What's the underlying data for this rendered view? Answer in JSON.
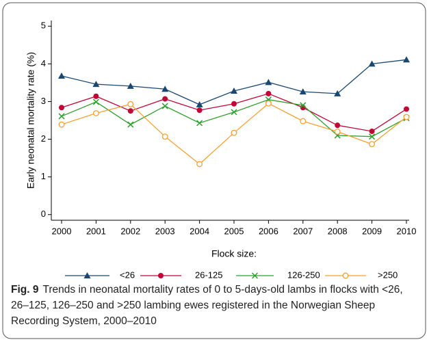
{
  "chart_data": {
    "type": "line",
    "y_label": "Early neonatal mortality rate (%)",
    "x_label": "Flock size:",
    "categories": [
      "2000",
      "2001",
      "2002",
      "2003",
      "2004",
      "2005",
      "2006",
      "2007",
      "2008",
      "2009",
      "2010"
    ],
    "ylim": [
      -0.15,
      5.15
    ],
    "yticks": [
      0,
      1,
      2,
      3,
      4,
      5
    ],
    "series": [
      {
        "name": "<26",
        "color": "#1a476f",
        "marker": "triangle",
        "values": [
          3.68,
          3.46,
          3.41,
          3.33,
          2.92,
          3.28,
          3.51,
          3.26,
          3.21,
          4.0,
          4.11
        ]
      },
      {
        "name": "26-125",
        "color": "#c10534",
        "marker": "circle",
        "values": [
          2.84,
          3.14,
          2.75,
          3.07,
          2.77,
          2.94,
          3.21,
          2.84,
          2.37,
          2.21,
          2.8
        ]
      },
      {
        "name": "126-250",
        "color": "#2ca02c",
        "marker": "x",
        "values": [
          2.61,
          2.99,
          2.39,
          2.88,
          2.43,
          2.72,
          3.05,
          2.9,
          2.1,
          2.07,
          2.56
        ]
      },
      {
        "name": ">250",
        "color": "#f5a030",
        "marker": "hollow-circle",
        "values": [
          2.39,
          2.69,
          2.93,
          2.07,
          1.34,
          2.17,
          2.95,
          2.48,
          2.2,
          1.87,
          2.59
        ]
      }
    ],
    "figure_label": "Fig. 9",
    "caption": "Trends in neonatal mortality rates of 0 to 5-days-old lambs in flocks with <26, 26–125, 126–250 and >250 lambing ewes registered in the Norwegian Sheep Recording System, 2000–2010"
  }
}
